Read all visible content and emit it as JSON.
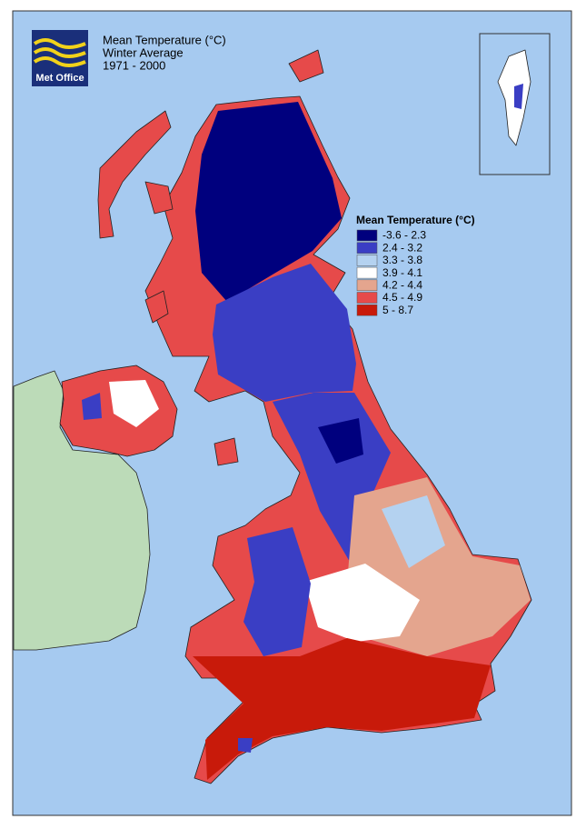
{
  "header": {
    "logo": "Met Office",
    "title": "Mean Temperature (°C)",
    "subtitle": "Winter Average",
    "period": "1971 - 2000"
  },
  "legend": {
    "title": "Mean Temperature (°C)",
    "items": [
      {
        "label": "-3.6 - 2.3",
        "color": "#00007e"
      },
      {
        "label": "2.4 - 3.2",
        "color": "#3a3ec4"
      },
      {
        "label": "3.3 - 3.8",
        "color": "#b4d2f0"
      },
      {
        "label": "3.9 - 4.1",
        "color": "#ffffff"
      },
      {
        "label": "4.2 - 4.4",
        "color": "#e4a58e"
      },
      {
        "label": "4.5 - 4.9",
        "color": "#e64a4a"
      },
      {
        "label": "5 - 8.7",
        "color": "#c81a0a"
      }
    ]
  }
}
